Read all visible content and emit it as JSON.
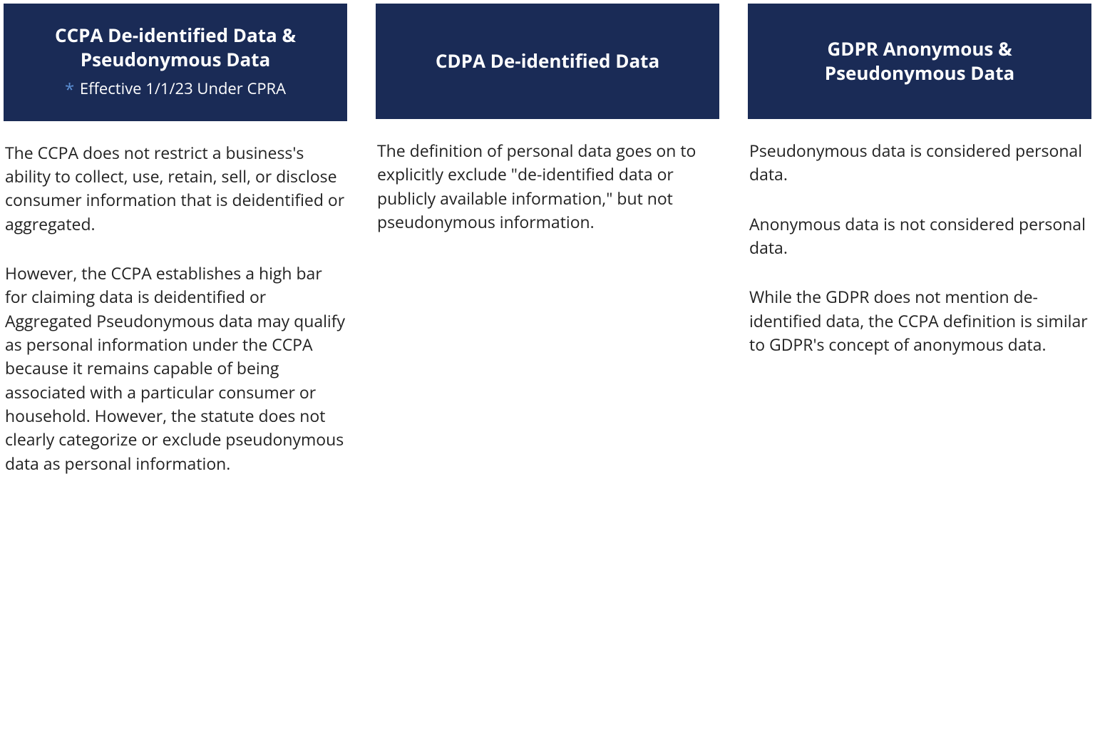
{
  "styling": {
    "header_bg_color": "#1a2b56",
    "header_text_color": "#ffffff",
    "asterisk_color": "#5b8fd4",
    "body_text_color": "#222222",
    "background_color": "#ffffff",
    "header_title_fontsize": 26,
    "header_subtitle_fontsize": 22,
    "body_fontsize": 23,
    "column_gap": 40,
    "header_min_height": 162
  },
  "columns": [
    {
      "header": {
        "title": "CCPA De-identified Data & Pseudonymous Data",
        "subtitle_prefix": "*",
        "subtitle": "Effective 1/1/23 Under CPRA"
      },
      "paragraphs": [
        "The CCPA does not restrict a business's ability to collect, use, retain, sell, or disclose consumer information that is deidentified or aggregated.",
        "However, the CCPA establishes a high bar for claiming data is deidentified or Aggregated Pseudonymous data may qualify as personal information under the CCPA because it remains capable of being associated with a particular consumer or household. However, the statute does not clearly categorize or exclude pseudonymous data as personal information."
      ]
    },
    {
      "header": {
        "title": "CDPA De-identified Data"
      },
      "paragraphs": [
        "The definition of personal data goes on to explicitly exclude \"de-identified data or publicly available information,\" but not pseudonymous information."
      ]
    },
    {
      "header": {
        "title": "GDPR Anonymous & Pseudonymous Data"
      },
      "paragraphs": [
        "Pseudonymous data is considered personal data.",
        "Anonymous data is not considered personal data.",
        "While the GDPR does not mention de-identified data, the CCPA definition is similar to GDPR's concept of anonymous data."
      ]
    }
  ]
}
